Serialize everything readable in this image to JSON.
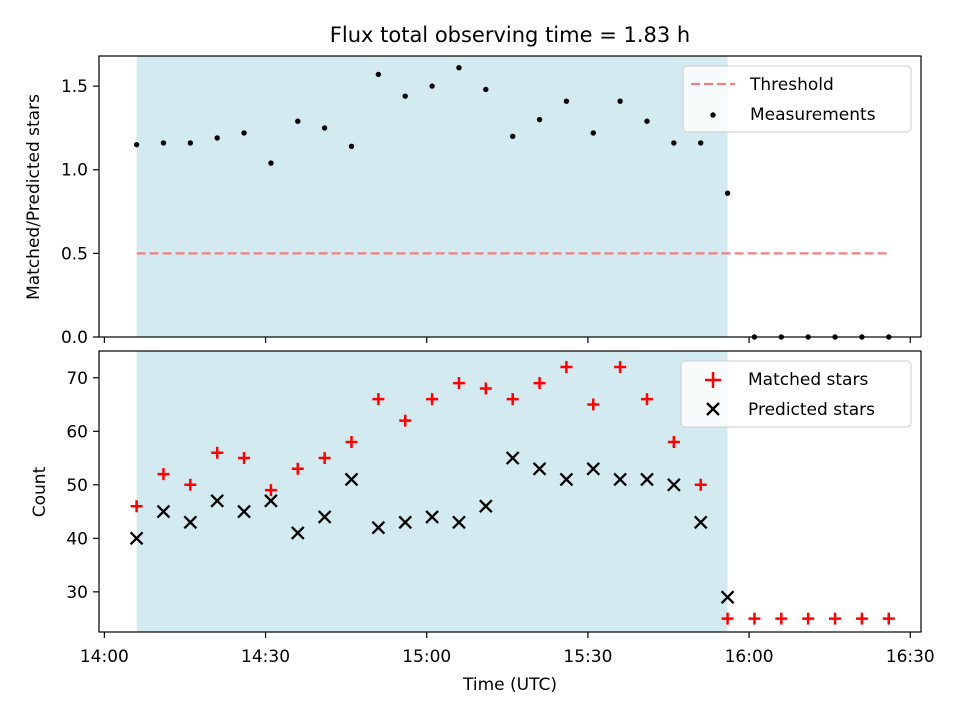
{
  "chart_data": {
    "title": "Flux total observing time = 1.83 h",
    "shaded_interval": {
      "start": "14:06",
      "end": "15:56",
      "color": "#d4eaf1"
    },
    "x_axis": {
      "label": "Time (UTC)",
      "range": [
        "13:59",
        "16:32"
      ],
      "ticks": [
        "14:00",
        "14:30",
        "15:00",
        "15:30",
        "16:00",
        "16:30"
      ]
    },
    "x": [
      "14:06",
      "14:11",
      "14:16",
      "14:21",
      "14:26",
      "14:31",
      "14:36",
      "14:41",
      "14:46",
      "14:51",
      "14:56",
      "15:01",
      "15:06",
      "15:11",
      "15:16",
      "15:21",
      "15:26",
      "15:31",
      "15:36",
      "15:41",
      "15:46",
      "15:51",
      "15:56",
      "16:01",
      "16:06",
      "16:11",
      "16:16",
      "16:21",
      "16:26"
    ],
    "panels": [
      {
        "type": "scatter",
        "ylabel": "Matched/Predicted stars",
        "ylim": [
          0,
          1.68
        ],
        "yticks": [
          "0.0",
          "0.5",
          "1.0",
          "1.5"
        ],
        "legend_position": "top-right",
        "series": [
          {
            "name": "Threshold",
            "style": "dashed-line",
            "color": "#f08080",
            "x_range": [
              "14:06",
              "16:26"
            ],
            "value": 0.5
          },
          {
            "name": "Measurements",
            "style": "dot",
            "color": "#000000",
            "values": [
              1.15,
              1.16,
              1.16,
              1.19,
              1.22,
              1.04,
              1.29,
              1.25,
              1.14,
              1.57,
              1.44,
              1.5,
              1.61,
              1.48,
              1.2,
              1.3,
              1.41,
              1.22,
              1.41,
              1.29,
              1.16,
              1.16,
              0.86,
              0,
              0,
              0,
              0,
              0,
              0
            ]
          }
        ]
      },
      {
        "type": "scatter",
        "ylabel": "Count",
        "ylim": [
          22.5,
          75
        ],
        "yticks": [
          "30",
          "40",
          "50",
          "60",
          "70"
        ],
        "legend_position": "top-right",
        "series": [
          {
            "name": "Matched stars",
            "style": "plus",
            "color": "#ff0000",
            "values": [
              46,
              52,
              50,
              56,
              55,
              49,
              53,
              55,
              58,
              66,
              62,
              66,
              69,
              68,
              66,
              69,
              72,
              65,
              72,
              66,
              58,
              50,
              25,
              25,
              25,
              25,
              25,
              25,
              25
            ]
          },
          {
            "name": "Predicted stars",
            "style": "x",
            "color": "#000000",
            "values": [
              40,
              45,
              43,
              47,
              45,
              47,
              41,
              44,
              51,
              42,
              43,
              44,
              43,
              46,
              55,
              53,
              51,
              53,
              51,
              51,
              50,
              43,
              29
            ]
          }
        ]
      }
    ]
  }
}
